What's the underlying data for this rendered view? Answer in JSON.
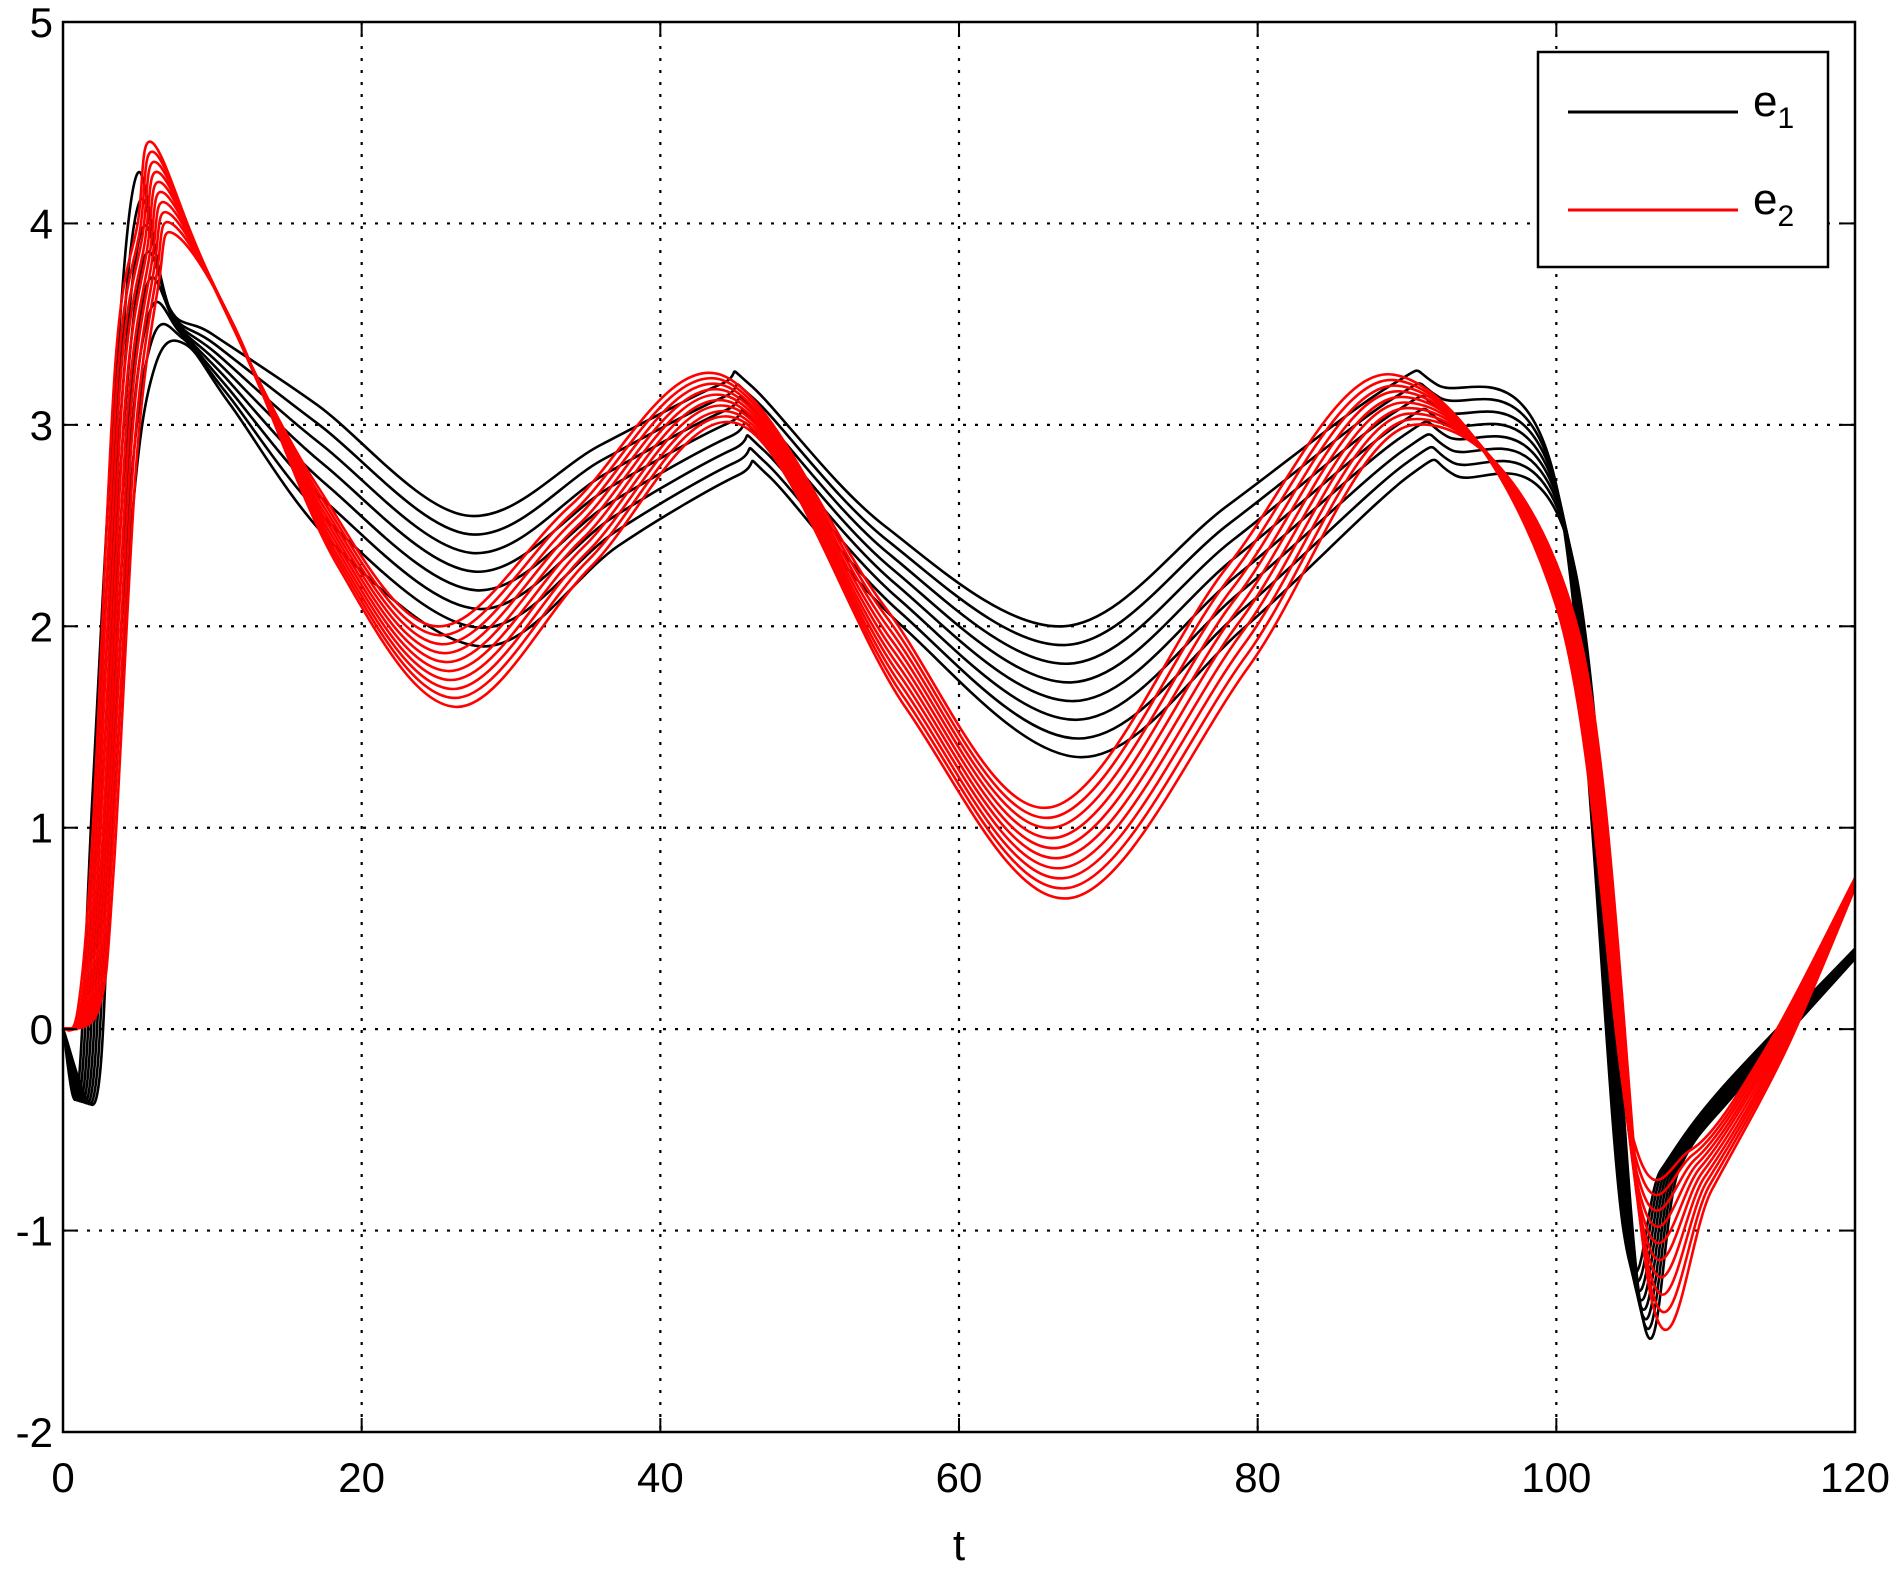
{
  "chart_data": {
    "type": "line",
    "title": "",
    "xlabel": "t",
    "ylabel": "",
    "xlim": [
      0,
      120
    ],
    "ylim": [
      -2,
      5
    ],
    "xticks": [
      0,
      20,
      40,
      60,
      80,
      100,
      120
    ],
    "yticks": [
      -2,
      -1,
      0,
      1,
      2,
      3,
      4,
      5
    ],
    "grid": true,
    "grid_style": "dotted",
    "legend_position": "top-right",
    "legend": [
      {
        "base": "e",
        "sub": "1",
        "color": "#000000"
      },
      {
        "base": "e",
        "sub": "2",
        "color": "#ff0000"
      }
    ],
    "series_groups": [
      {
        "legend": "e1",
        "color": "#000000",
        "curve_count": 8,
        "sample_t": [
          0,
          1,
          2,
          3.5,
          5,
          7,
          10,
          17,
          27,
          36,
          44,
          46,
          55,
          67,
          78,
          89,
          92,
          100,
          104.5,
          107,
          111,
          120
        ],
        "upper_curve": [
          0,
          -0.3,
          1.2,
          3.2,
          4.25,
          3.6,
          3.45,
          3.1,
          2.55,
          2.9,
          3.2,
          3.2,
          2.5,
          2.0,
          2.6,
          3.2,
          3.2,
          2.7,
          -1.0,
          -0.7,
          -0.3,
          0.4
        ],
        "lower_curve": [
          0,
          -0.35,
          0.8,
          2.6,
          3.3,
          3.4,
          3.1,
          2.4,
          1.9,
          2.4,
          2.75,
          2.75,
          2.0,
          1.35,
          2.0,
          2.75,
          2.75,
          2.3,
          -1.4,
          -0.7,
          -0.3,
          0.35
        ]
      },
      {
        "legend": "e2",
        "color": "#ff0000",
        "curve_count": 10,
        "sample_t": [
          0,
          1,
          2,
          3.5,
          5,
          6,
          10,
          17,
          25,
          34,
          44,
          55,
          66,
          78,
          89,
          100,
          105,
          109,
          114,
          120
        ],
        "upper_curve": [
          0,
          0.1,
          1.0,
          3.3,
          4.0,
          4.4,
          3.7,
          2.7,
          2.0,
          2.6,
          3.25,
          2.1,
          1.1,
          2.3,
          3.25,
          2.1,
          -0.5,
          -0.6,
          -0.1,
          0.75
        ],
        "lower_curve": [
          0,
          0.1,
          0.8,
          2.8,
          3.7,
          3.95,
          3.5,
          2.3,
          1.6,
          2.3,
          3.0,
          1.6,
          0.65,
          1.8,
          3.0,
          2.0,
          -1.35,
          -0.8,
          -0.1,
          0.7
        ]
      }
    ]
  }
}
